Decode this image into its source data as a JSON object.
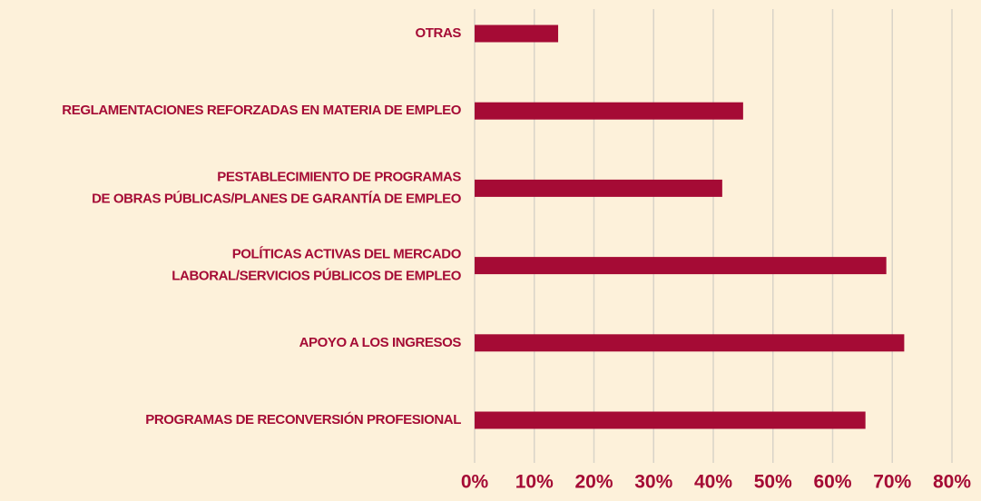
{
  "chart_data": {
    "type": "bar",
    "orientation": "horizontal",
    "categories": [
      "OTRAS",
      "REGLAMENTACIONES REFORZADAS EN MATERIA DE EMPLEO",
      "PESTABLECIMIENTO DE PROGRAMAS\nDE OBRAS PÚBLICAS/PLANES DE GARANTÍA DE EMPLEO",
      "POLÍTICAS ACTIVAS DEL MERCADO\nLABORAL/SERVICIOS PÚBLICOS DE EMPLEO",
      "APOYO A LOS INGRESOS",
      "PROGRAMAS DE RECONVERSIÓN PROFESIONAL"
    ],
    "values": [
      14,
      45,
      41.5,
      69,
      72,
      65.5
    ],
    "color": "#a50b35",
    "xlim": [
      0,
      80
    ],
    "xticks": [
      {
        "value": 0,
        "label": "0%"
      },
      {
        "value": 10,
        "label": "10%"
      },
      {
        "value": 20,
        "label": "20%"
      },
      {
        "value": 30,
        "label": "30%"
      },
      {
        "value": 40,
        "label": "40%"
      },
      {
        "value": 50,
        "label": "50%"
      },
      {
        "value": 60,
        "label": "60%"
      },
      {
        "value": 70,
        "label": "70%"
      },
      {
        "value": 80,
        "label": "80%"
      }
    ],
    "grid": true
  }
}
